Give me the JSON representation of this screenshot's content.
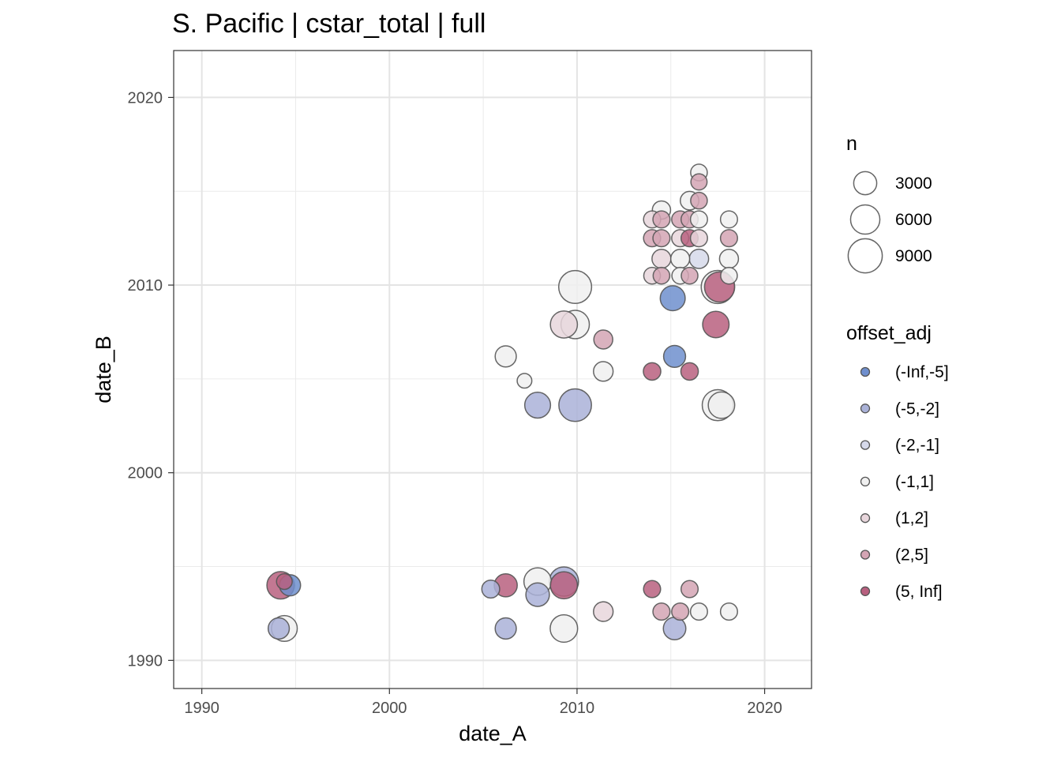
{
  "chart_data": {
    "type": "scatter",
    "title": "S. Pacific | cstar_total | full",
    "xlabel": "date_A",
    "ylabel": "date_B",
    "xlim": [
      1988.5,
      2022.5
    ],
    "ylim": [
      1988.5,
      2022.5
    ],
    "xticks": [
      1990,
      2000,
      2010,
      2020
    ],
    "yticks": [
      1990,
      2000,
      2010,
      2020
    ],
    "xtick_labels": [
      "1990",
      "2000",
      "2010",
      "2020"
    ],
    "ytick_labels": [
      "1990",
      "2000",
      "2010",
      "2020"
    ],
    "grid": true,
    "size_legend": {
      "title": "n",
      "values": [
        3000,
        6000,
        9000
      ],
      "labels": [
        "3000",
        "6000",
        "9000"
      ]
    },
    "color_legend": {
      "title": "offset_adj",
      "categories": [
        "(-Inf,-5]",
        "(-5,-2]",
        "(-2,-1]",
        "(-1,1]",
        "(1,2]",
        "(2,5]",
        "(5, Inf]"
      ],
      "colors": [
        "#6f8fce",
        "#aab2d8",
        "#d6d9ea",
        "#f0f0f0",
        "#e8d6dc",
        "#d4a5b4",
        "#b8607f"
      ]
    },
    "points": [
      {
        "x": 2009.9,
        "y": 2009.9,
        "n": 8200,
        "cat": "(-1,1]"
      },
      {
        "x": 2017.5,
        "y": 2009.9,
        "n": 8300,
        "cat": "(-1,1]"
      },
      {
        "x": 2017.6,
        "y": 2009.9,
        "n": 6500,
        "cat": "(5, Inf]"
      },
      {
        "x": 2015.1,
        "y": 2009.3,
        "n": 3800,
        "cat": "(-Inf,-5]"
      },
      {
        "x": 2009.3,
        "y": 2007.9,
        "n": 4800,
        "cat": "(1,2]"
      },
      {
        "x": 2009.9,
        "y": 2007.9,
        "n": 5500,
        "cat": "(-1,1]"
      },
      {
        "x": 2017.4,
        "y": 2007.9,
        "n": 4500,
        "cat": "(5, Inf]"
      },
      {
        "x": 2011.4,
        "y": 2007.1,
        "n": 1600,
        "cat": "(2,5]"
      },
      {
        "x": 2006.2,
        "y": 2006.2,
        "n": 2300,
        "cat": "(-1,1]"
      },
      {
        "x": 2015.2,
        "y": 2006.2,
        "n": 2600,
        "cat": "(-Inf,-5]"
      },
      {
        "x": 2011.4,
        "y": 2005.4,
        "n": 1800,
        "cat": "(-1,1]"
      },
      {
        "x": 2014.0,
        "y": 2005.4,
        "n": 1200,
        "cat": "(5, Inf]"
      },
      {
        "x": 2016.0,
        "y": 2005.4,
        "n": 1200,
        "cat": "(5, Inf]"
      },
      {
        "x": 2007.2,
        "y": 2004.9,
        "n": 600,
        "cat": "(-1,1]"
      },
      {
        "x": 2007.9,
        "y": 2003.6,
        "n": 4200,
        "cat": "(-5,-2]"
      },
      {
        "x": 2009.9,
        "y": 2003.6,
        "n": 8000,
        "cat": "(-5,-2]"
      },
      {
        "x": 2017.5,
        "y": 2003.6,
        "n": 7000,
        "cat": "(-1,1]"
      },
      {
        "x": 2017.7,
        "y": 2003.6,
        "n": 4500,
        "cat": "(-1,1]"
      },
      {
        "x": 2014.0,
        "y": 2013.5,
        "n": 1100,
        "cat": "(1,2]"
      },
      {
        "x": 2014.5,
        "y": 2013.5,
        "n": 1100,
        "cat": "(2,5]"
      },
      {
        "x": 2014.5,
        "y": 2014.0,
        "n": 1400,
        "cat": "(-1,1]"
      },
      {
        "x": 2015.5,
        "y": 2013.5,
        "n": 1100,
        "cat": "(2,5]"
      },
      {
        "x": 2016.0,
        "y": 2013.5,
        "n": 1100,
        "cat": "(2,5]"
      },
      {
        "x": 2016.0,
        "y": 2014.5,
        "n": 1500,
        "cat": "(-1,1]"
      },
      {
        "x": 2016.5,
        "y": 2014.5,
        "n": 1000,
        "cat": "(2,5]"
      },
      {
        "x": 2016.5,
        "y": 2015.5,
        "n": 900,
        "cat": "(2,5]"
      },
      {
        "x": 2016.5,
        "y": 2016.0,
        "n": 1000,
        "cat": "(-1,1]"
      },
      {
        "x": 2016.5,
        "y": 2013.5,
        "n": 1100,
        "cat": "(-1,1]"
      },
      {
        "x": 2018.1,
        "y": 2013.5,
        "n": 1100,
        "cat": "(-1,1]"
      },
      {
        "x": 2014.0,
        "y": 2012.5,
        "n": 1100,
        "cat": "(2,5]"
      },
      {
        "x": 2014.5,
        "y": 2012.5,
        "n": 1100,
        "cat": "(2,5]"
      },
      {
        "x": 2015.5,
        "y": 2012.5,
        "n": 1100,
        "cat": "(1,2]"
      },
      {
        "x": 2016.0,
        "y": 2012.5,
        "n": 1100,
        "cat": "(5, Inf]"
      },
      {
        "x": 2016.5,
        "y": 2012.5,
        "n": 1100,
        "cat": "(1,2]"
      },
      {
        "x": 2018.1,
        "y": 2012.5,
        "n": 1100,
        "cat": "(2,5]"
      },
      {
        "x": 2014.5,
        "y": 2011.4,
        "n": 1600,
        "cat": "(1,2]"
      },
      {
        "x": 2015.5,
        "y": 2011.4,
        "n": 1600,
        "cat": "(-1,1]"
      },
      {
        "x": 2016.5,
        "y": 2011.4,
        "n": 1700,
        "cat": "(-2,-1]"
      },
      {
        "x": 2018.1,
        "y": 2011.4,
        "n": 1600,
        "cat": "(-1,1]"
      },
      {
        "x": 2014.0,
        "y": 2010.5,
        "n": 1000,
        "cat": "(1,2]"
      },
      {
        "x": 2014.5,
        "y": 2010.5,
        "n": 1000,
        "cat": "(2,5]"
      },
      {
        "x": 2015.5,
        "y": 2010.5,
        "n": 1000,
        "cat": "(-1,1]"
      },
      {
        "x": 2016.0,
        "y": 2010.5,
        "n": 1000,
        "cat": "(2,5]"
      },
      {
        "x": 2018.1,
        "y": 2010.5,
        "n": 1000,
        "cat": "(-1,1]"
      },
      {
        "x": 1994.2,
        "y": 1994.0,
        "n": 5000,
        "cat": "(5, Inf]"
      },
      {
        "x": 1994.7,
        "y": 1994.0,
        "n": 2300,
        "cat": "(-Inf,-5]"
      },
      {
        "x": 1994.4,
        "y": 1994.2,
        "n": 800,
        "cat": "(5, Inf]"
      },
      {
        "x": 1994.4,
        "y": 1991.7,
        "n": 4200,
        "cat": "(-1,1]"
      },
      {
        "x": 1994.1,
        "y": 1991.7,
        "n": 2300,
        "cat": "(-5,-2]"
      },
      {
        "x": 2005.4,
        "y": 1993.8,
        "n": 1300,
        "cat": "(-5,-2]"
      },
      {
        "x": 2006.2,
        "y": 1994.0,
        "n": 3000,
        "cat": "(5, Inf]"
      },
      {
        "x": 2007.9,
        "y": 1994.2,
        "n": 5000,
        "cat": "(-1,1]"
      },
      {
        "x": 2007.9,
        "y": 1993.5,
        "n": 3200,
        "cat": "(-5,-2]"
      },
      {
        "x": 2009.3,
        "y": 1994.2,
        "n": 6000,
        "cat": "(-5,-2]"
      },
      {
        "x": 2009.3,
        "y": 1994.0,
        "n": 4800,
        "cat": "(5, Inf]"
      },
      {
        "x": 2011.4,
        "y": 1992.6,
        "n": 1800,
        "cat": "(1,2]"
      },
      {
        "x": 2014.0,
        "y": 1993.8,
        "n": 1100,
        "cat": "(5, Inf]"
      },
      {
        "x": 2016.0,
        "y": 1993.8,
        "n": 1100,
        "cat": "(2,5]"
      },
      {
        "x": 2014.5,
        "y": 1992.6,
        "n": 1100,
        "cat": "(2,5]"
      },
      {
        "x": 2015.5,
        "y": 1992.6,
        "n": 1100,
        "cat": "(2,5]"
      },
      {
        "x": 2016.5,
        "y": 1992.6,
        "n": 1100,
        "cat": "(-1,1]"
      },
      {
        "x": 2018.1,
        "y": 1992.6,
        "n": 1100,
        "cat": "(-1,1]"
      },
      {
        "x": 2006.2,
        "y": 1991.7,
        "n": 2300,
        "cat": "(-5,-2]"
      },
      {
        "x": 2009.3,
        "y": 1991.7,
        "n": 5000,
        "cat": "(-1,1]"
      },
      {
        "x": 2015.2,
        "y": 1991.7,
        "n": 2800,
        "cat": "(-5,-2]"
      }
    ]
  }
}
